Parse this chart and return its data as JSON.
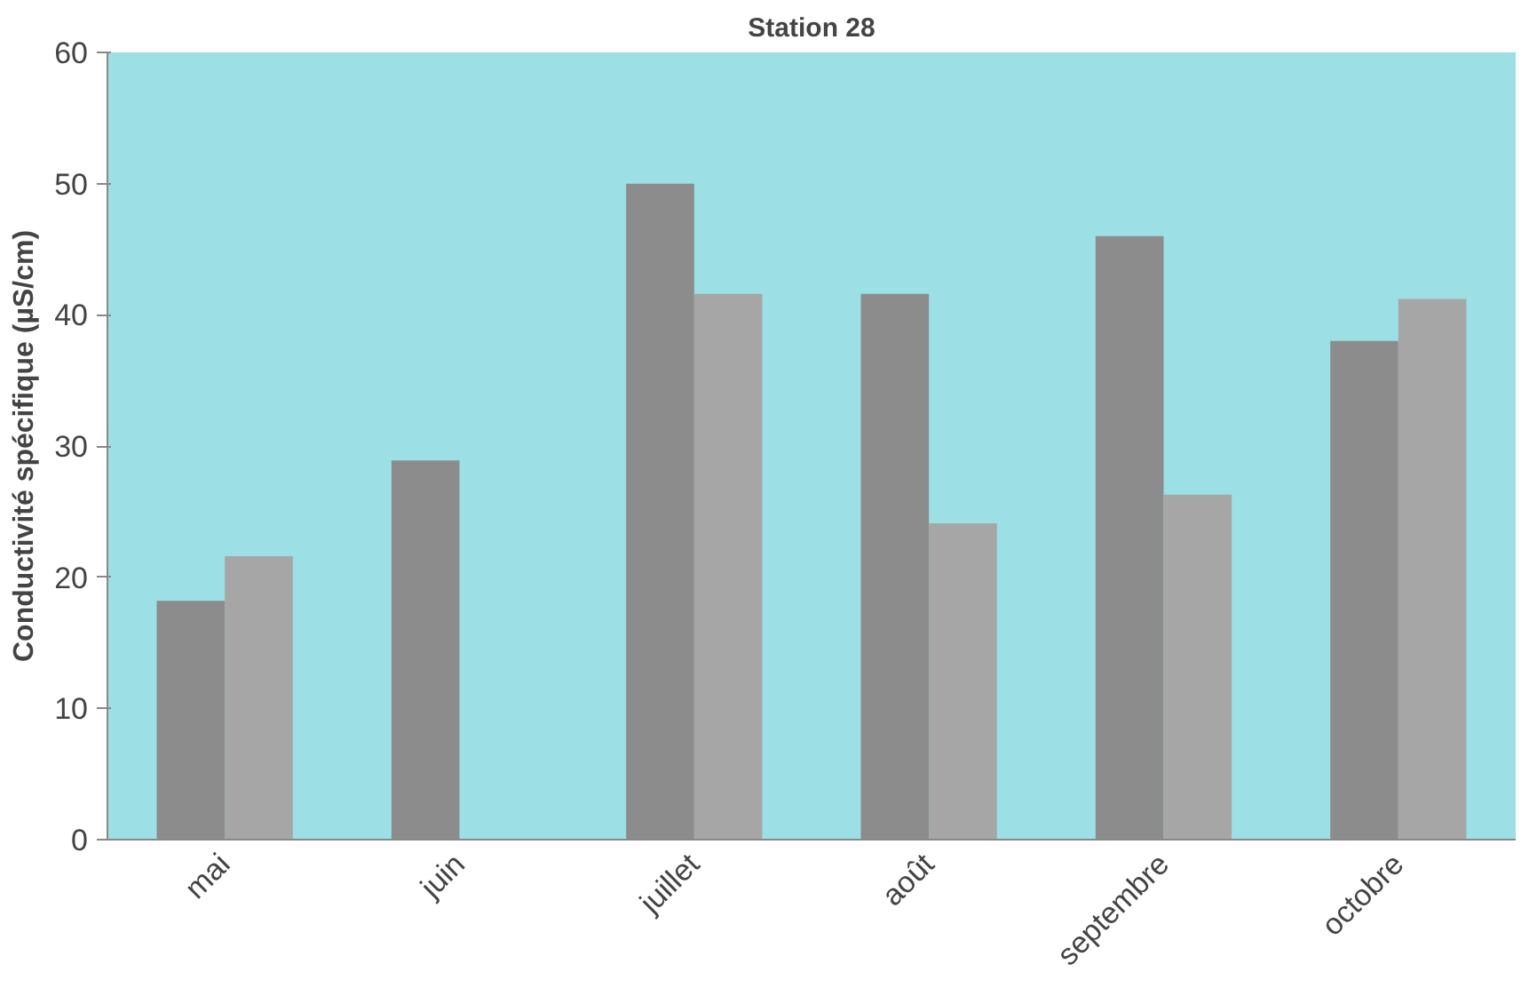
{
  "chart_data": {
    "type": "bar",
    "title": "Station 28",
    "ylabel": "Conductivité spécifique (µS/cm)",
    "categories": [
      "mai",
      "juin",
      "juillet",
      "août",
      "septembre",
      "octobre"
    ],
    "series": [
      {
        "color": "#8c8c8c",
        "values": [
          18.2,
          28.9,
          50.0,
          41.6,
          46.0,
          38.0
        ]
      },
      {
        "color": "#a6a6a6",
        "values": [
          21.6,
          null,
          41.6,
          24.1,
          26.3,
          41.2
        ]
      }
    ],
    "ylim": [
      0,
      60
    ],
    "yticks": [
      0,
      10,
      20,
      30,
      40,
      50,
      60
    ],
    "grid": false
  }
}
